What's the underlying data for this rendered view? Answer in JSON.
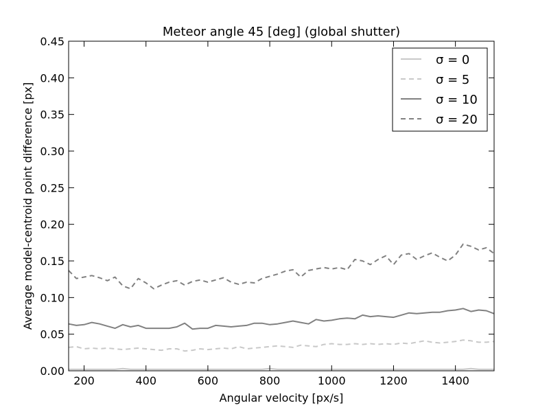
{
  "chart_data": {
    "type": "line",
    "title": "Meteor angle 45 [deg] (global shutter)",
    "xlabel": "Angular velocity [px/s]",
    "ylabel": "Average model-centroid point difference [px]",
    "xlim": [
      150,
      1525
    ],
    "ylim": [
      0,
      0.45
    ],
    "xticks": [
      200,
      400,
      600,
      800,
      1000,
      1200,
      1400
    ],
    "yticks": [
      0.0,
      0.05,
      0.1,
      0.15,
      0.2,
      0.25,
      0.3,
      0.35,
      0.4,
      0.45
    ],
    "ytick_labels": [
      "0.00",
      "0.05",
      "0.10",
      "0.15",
      "0.20",
      "0.25",
      "0.30",
      "0.35",
      "0.40",
      "0.45"
    ],
    "legend_position": "top-right",
    "grid": false,
    "x": [
      150,
      175,
      200,
      225,
      250,
      275,
      300,
      325,
      350,
      375,
      400,
      425,
      450,
      475,
      500,
      525,
      550,
      575,
      600,
      625,
      650,
      675,
      700,
      725,
      750,
      775,
      800,
      825,
      850,
      875,
      900,
      925,
      950,
      975,
      1000,
      1025,
      1050,
      1075,
      1100,
      1125,
      1150,
      1175,
      1200,
      1225,
      1250,
      1275,
      1300,
      1325,
      1350,
      1375,
      1400,
      1425,
      1450,
      1475,
      1500,
      1525
    ],
    "series": [
      {
        "name": "σ = 0",
        "color": "#c8c8c8",
        "dash": "solid",
        "values": [
          0.002,
          0.002,
          0.002,
          0.002,
          0.002,
          0.002,
          0.002,
          0.003,
          0.002,
          0.002,
          0.002,
          0.002,
          0.002,
          0.002,
          0.002,
          0.002,
          0.002,
          0.002,
          0.002,
          0.002,
          0.002,
          0.002,
          0.002,
          0.002,
          0.002,
          0.002,
          0.003,
          0.002,
          0.002,
          0.002,
          0.002,
          0.002,
          0.002,
          0.002,
          0.002,
          0.002,
          0.002,
          0.002,
          0.002,
          0.002,
          0.002,
          0.002,
          0.002,
          0.002,
          0.002,
          0.002,
          0.002,
          0.002,
          0.002,
          0.002,
          0.002,
          0.002,
          0.003,
          0.002,
          0.002,
          0.002
        ]
      },
      {
        "name": "σ = 5",
        "color": "#c8c8c8",
        "dash": "dashed",
        "values": [
          0.032,
          0.033,
          0.03,
          0.031,
          0.03,
          0.031,
          0.03,
          0.029,
          0.03,
          0.031,
          0.03,
          0.029,
          0.028,
          0.03,
          0.03,
          0.027,
          0.028,
          0.03,
          0.029,
          0.03,
          0.031,
          0.03,
          0.033,
          0.03,
          0.031,
          0.032,
          0.033,
          0.034,
          0.033,
          0.032,
          0.035,
          0.034,
          0.033,
          0.036,
          0.037,
          0.036,
          0.036,
          0.037,
          0.036,
          0.037,
          0.036,
          0.037,
          0.036,
          0.038,
          0.037,
          0.039,
          0.041,
          0.039,
          0.038,
          0.039,
          0.04,
          0.042,
          0.041,
          0.039,
          0.039,
          0.04
        ]
      },
      {
        "name": "σ = 10",
        "color": "#808080",
        "dash": "solid",
        "values": [
          0.064,
          0.062,
          0.063,
          0.066,
          0.064,
          0.061,
          0.058,
          0.063,
          0.06,
          0.062,
          0.058,
          0.058,
          0.058,
          0.058,
          0.06,
          0.065,
          0.057,
          0.058,
          0.058,
          0.062,
          0.061,
          0.06,
          0.061,
          0.062,
          0.065,
          0.065,
          0.063,
          0.064,
          0.066,
          0.068,
          0.066,
          0.064,
          0.07,
          0.068,
          0.069,
          0.071,
          0.072,
          0.071,
          0.076,
          0.074,
          0.075,
          0.074,
          0.073,
          0.076,
          0.079,
          0.078,
          0.079,
          0.08,
          0.08,
          0.082,
          0.083,
          0.085,
          0.081,
          0.083,
          0.082,
          0.078
        ]
      },
      {
        "name": "σ = 20",
        "color": "#808080",
        "dash": "dashed",
        "values": [
          0.137,
          0.126,
          0.128,
          0.13,
          0.127,
          0.123,
          0.128,
          0.116,
          0.112,
          0.126,
          0.12,
          0.112,
          0.117,
          0.121,
          0.123,
          0.117,
          0.122,
          0.124,
          0.121,
          0.124,
          0.127,
          0.121,
          0.118,
          0.121,
          0.12,
          0.126,
          0.129,
          0.132,
          0.136,
          0.138,
          0.128,
          0.137,
          0.139,
          0.141,
          0.139,
          0.141,
          0.138,
          0.152,
          0.15,
          0.145,
          0.152,
          0.157,
          0.145,
          0.158,
          0.16,
          0.152,
          0.157,
          0.161,
          0.155,
          0.15,
          0.158,
          0.173,
          0.17,
          0.165,
          0.168,
          0.16
        ]
      }
    ]
  }
}
